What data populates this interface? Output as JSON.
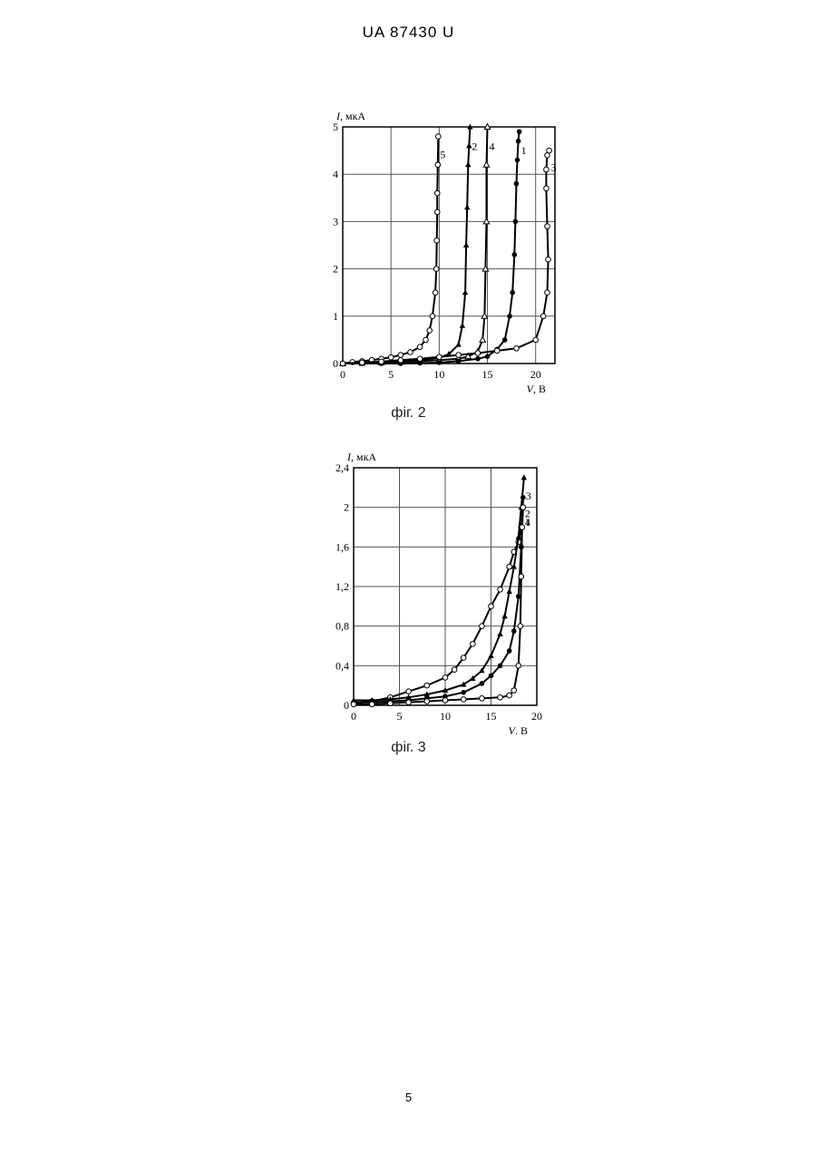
{
  "header": "UA 87430 U",
  "page_number": "5",
  "chart_data": [
    {
      "type": "line",
      "caption": "фіг. 2",
      "ylabel_var": "I",
      "ylabel_unit": ", мкА",
      "xlabel_var": "V",
      "xlabel_unit": ", В",
      "xlim": [
        0,
        22
      ],
      "ylim": [
        0,
        5
      ],
      "x_ticks": [
        "0",
        "5",
        "10",
        "15",
        "20"
      ],
      "y_ticks": [
        "0",
        "1",
        "2",
        "3",
        "4",
        "5"
      ],
      "grid": true,
      "series": [
        {
          "name": "5",
          "marker": "open-circle",
          "x": [
            0,
            1,
            2,
            3,
            4,
            5,
            6,
            7,
            8,
            8.6,
            9,
            9.3,
            9.6,
            9.7,
            9.75,
            9.8,
            9.8,
            9.85,
            9.9
          ],
          "y": [
            0,
            0.03,
            0.05,
            0.07,
            0.1,
            0.13,
            0.18,
            0.24,
            0.35,
            0.5,
            0.7,
            1.0,
            1.5,
            2.0,
            2.6,
            3.2,
            3.6,
            4.2,
            4.8
          ]
        },
        {
          "name": "2",
          "marker": "filled-triangle",
          "x": [
            0,
            2,
            4,
            6,
            8,
            10,
            11,
            12,
            12.4,
            12.7,
            12.8,
            12.9,
            13,
            13.1,
            13.2
          ],
          "y": [
            0,
            0.01,
            0.02,
            0.04,
            0.07,
            0.12,
            0.2,
            0.4,
            0.8,
            1.5,
            2.5,
            3.3,
            4.2,
            4.6,
            5.0
          ]
        },
        {
          "name": "4",
          "marker": "open-triangle",
          "x": [
            0,
            2,
            4,
            6,
            8,
            10,
            12,
            13,
            14,
            14.5,
            14.7,
            14.8,
            14.9,
            14.9,
            15
          ],
          "y": [
            0,
            0.01,
            0.02,
            0.03,
            0.05,
            0.07,
            0.1,
            0.15,
            0.25,
            0.5,
            1.0,
            2.0,
            3.0,
            4.2,
            5.0
          ]
        },
        {
          "name": "1",
          "marker": "filled-circle",
          "x": [
            0,
            2,
            4,
            6,
            8,
            10,
            12,
            14,
            15,
            16,
            16.8,
            17.3,
            17.6,
            17.8,
            17.9,
            18,
            18.1,
            18.2,
            18.3
          ],
          "y": [
            0,
            0,
            0,
            0,
            0.01,
            0.02,
            0.05,
            0.1,
            0.15,
            0.3,
            0.5,
            1.0,
            1.5,
            2.3,
            3.0,
            3.8,
            4.3,
            4.7,
            4.9
          ]
        },
        {
          "name": "3",
          "marker": "open-circle",
          "x": [
            0,
            2,
            4,
            6,
            8,
            10,
            12,
            14,
            16,
            18,
            20,
            20.8,
            21.2,
            21.3,
            21.2,
            21.1,
            21.1,
            21.2,
            21.4
          ],
          "y": [
            0,
            0.02,
            0.04,
            0.07,
            0.1,
            0.14,
            0.18,
            0.22,
            0.27,
            0.32,
            0.5,
            1.0,
            1.5,
            2.2,
            2.9,
            3.7,
            4.1,
            4.4,
            4.5
          ]
        }
      ]
    },
    {
      "type": "line",
      "caption": "фіг. 3",
      "ylabel_var": "I",
      "ylabel_unit": ", мкА",
      "xlabel_var": "V",
      "xlabel_unit": ", В",
      "xlim": [
        0,
        20
      ],
      "ylim": [
        0,
        2.4
      ],
      "x_ticks": [
        "0",
        "5",
        "10",
        "15",
        "20"
      ],
      "y_ticks": [
        "0",
        "0,4",
        "0,8",
        "1,2",
        "1,6",
        "2",
        "2,4"
      ],
      "grid": true,
      "series": [
        {
          "name": "4",
          "marker": "open-circle",
          "x": [
            0,
            2,
            4,
            6,
            8,
            10,
            11,
            12,
            13,
            14,
            15,
            16,
            17,
            17.5,
            18,
            18.3,
            18.5
          ],
          "y": [
            0.02,
            0.04,
            0.08,
            0.14,
            0.2,
            0.28,
            0.36,
            0.48,
            0.62,
            0.8,
            1.0,
            1.17,
            1.4,
            1.55,
            1.65,
            1.8,
            2.0
          ]
        },
        {
          "name": "3",
          "marker": "filled-triangle",
          "x": [
            0,
            2,
            4,
            6,
            8,
            10,
            12,
            13,
            14,
            15,
            16,
            16.5,
            17,
            17.5,
            18,
            18.3,
            18.6
          ],
          "y": [
            0.05,
            0.05,
            0.06,
            0.08,
            0.11,
            0.15,
            0.21,
            0.27,
            0.35,
            0.5,
            0.72,
            0.9,
            1.15,
            1.4,
            1.7,
            2.0,
            2.3
          ]
        },
        {
          "name": "2",
          "marker": "filled-circle",
          "x": [
            0,
            2,
            4,
            6,
            8,
            10,
            12,
            14,
            15,
            16,
            17,
            17.5,
            18,
            18.3,
            18.5
          ],
          "y": [
            0.03,
            0.03,
            0.04,
            0.05,
            0.07,
            0.09,
            0.13,
            0.22,
            0.3,
            0.4,
            0.55,
            0.75,
            1.1,
            1.6,
            2.1
          ]
        },
        {
          "name": "1",
          "marker": "open-circle",
          "x": [
            0,
            2,
            4,
            6,
            8,
            10,
            12,
            14,
            16,
            17,
            17.5,
            18,
            18.2,
            18.3,
            18.4,
            18.5
          ],
          "y": [
            0.01,
            0.01,
            0.02,
            0.03,
            0.04,
            0.05,
            0.06,
            0.07,
            0.08,
            0.1,
            0.15,
            0.4,
            0.8,
            1.3,
            1.8,
            2.0
          ]
        }
      ]
    }
  ]
}
